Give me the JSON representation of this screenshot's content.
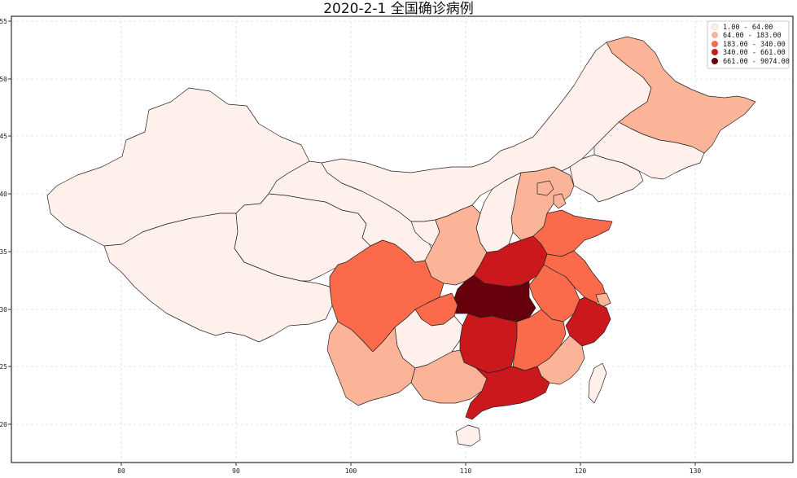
{
  "title": "2020-2-1 全国确诊病例",
  "map": {
    "x_ticks": [
      "80",
      "90",
      "100",
      "110",
      "120",
      "130"
    ],
    "y_ticks": [
      "55",
      "50",
      "45",
      "40",
      "35",
      "30",
      "25",
      "20"
    ],
    "legend": [
      {
        "label": "1.00 - 64.00",
        "color": "#fff0ec"
      },
      {
        "label": "64.00 - 183.00",
        "color": "#fcb499"
      },
      {
        "label": "183.00 - 340.00",
        "color": "#fb6a4a"
      },
      {
        "label": "340.00 - 661.00",
        "color": "#cb181d"
      },
      {
        "label": "661.00 - 9074.00",
        "color": "#67000d"
      }
    ],
    "grid": "on (dashed)"
  }
}
